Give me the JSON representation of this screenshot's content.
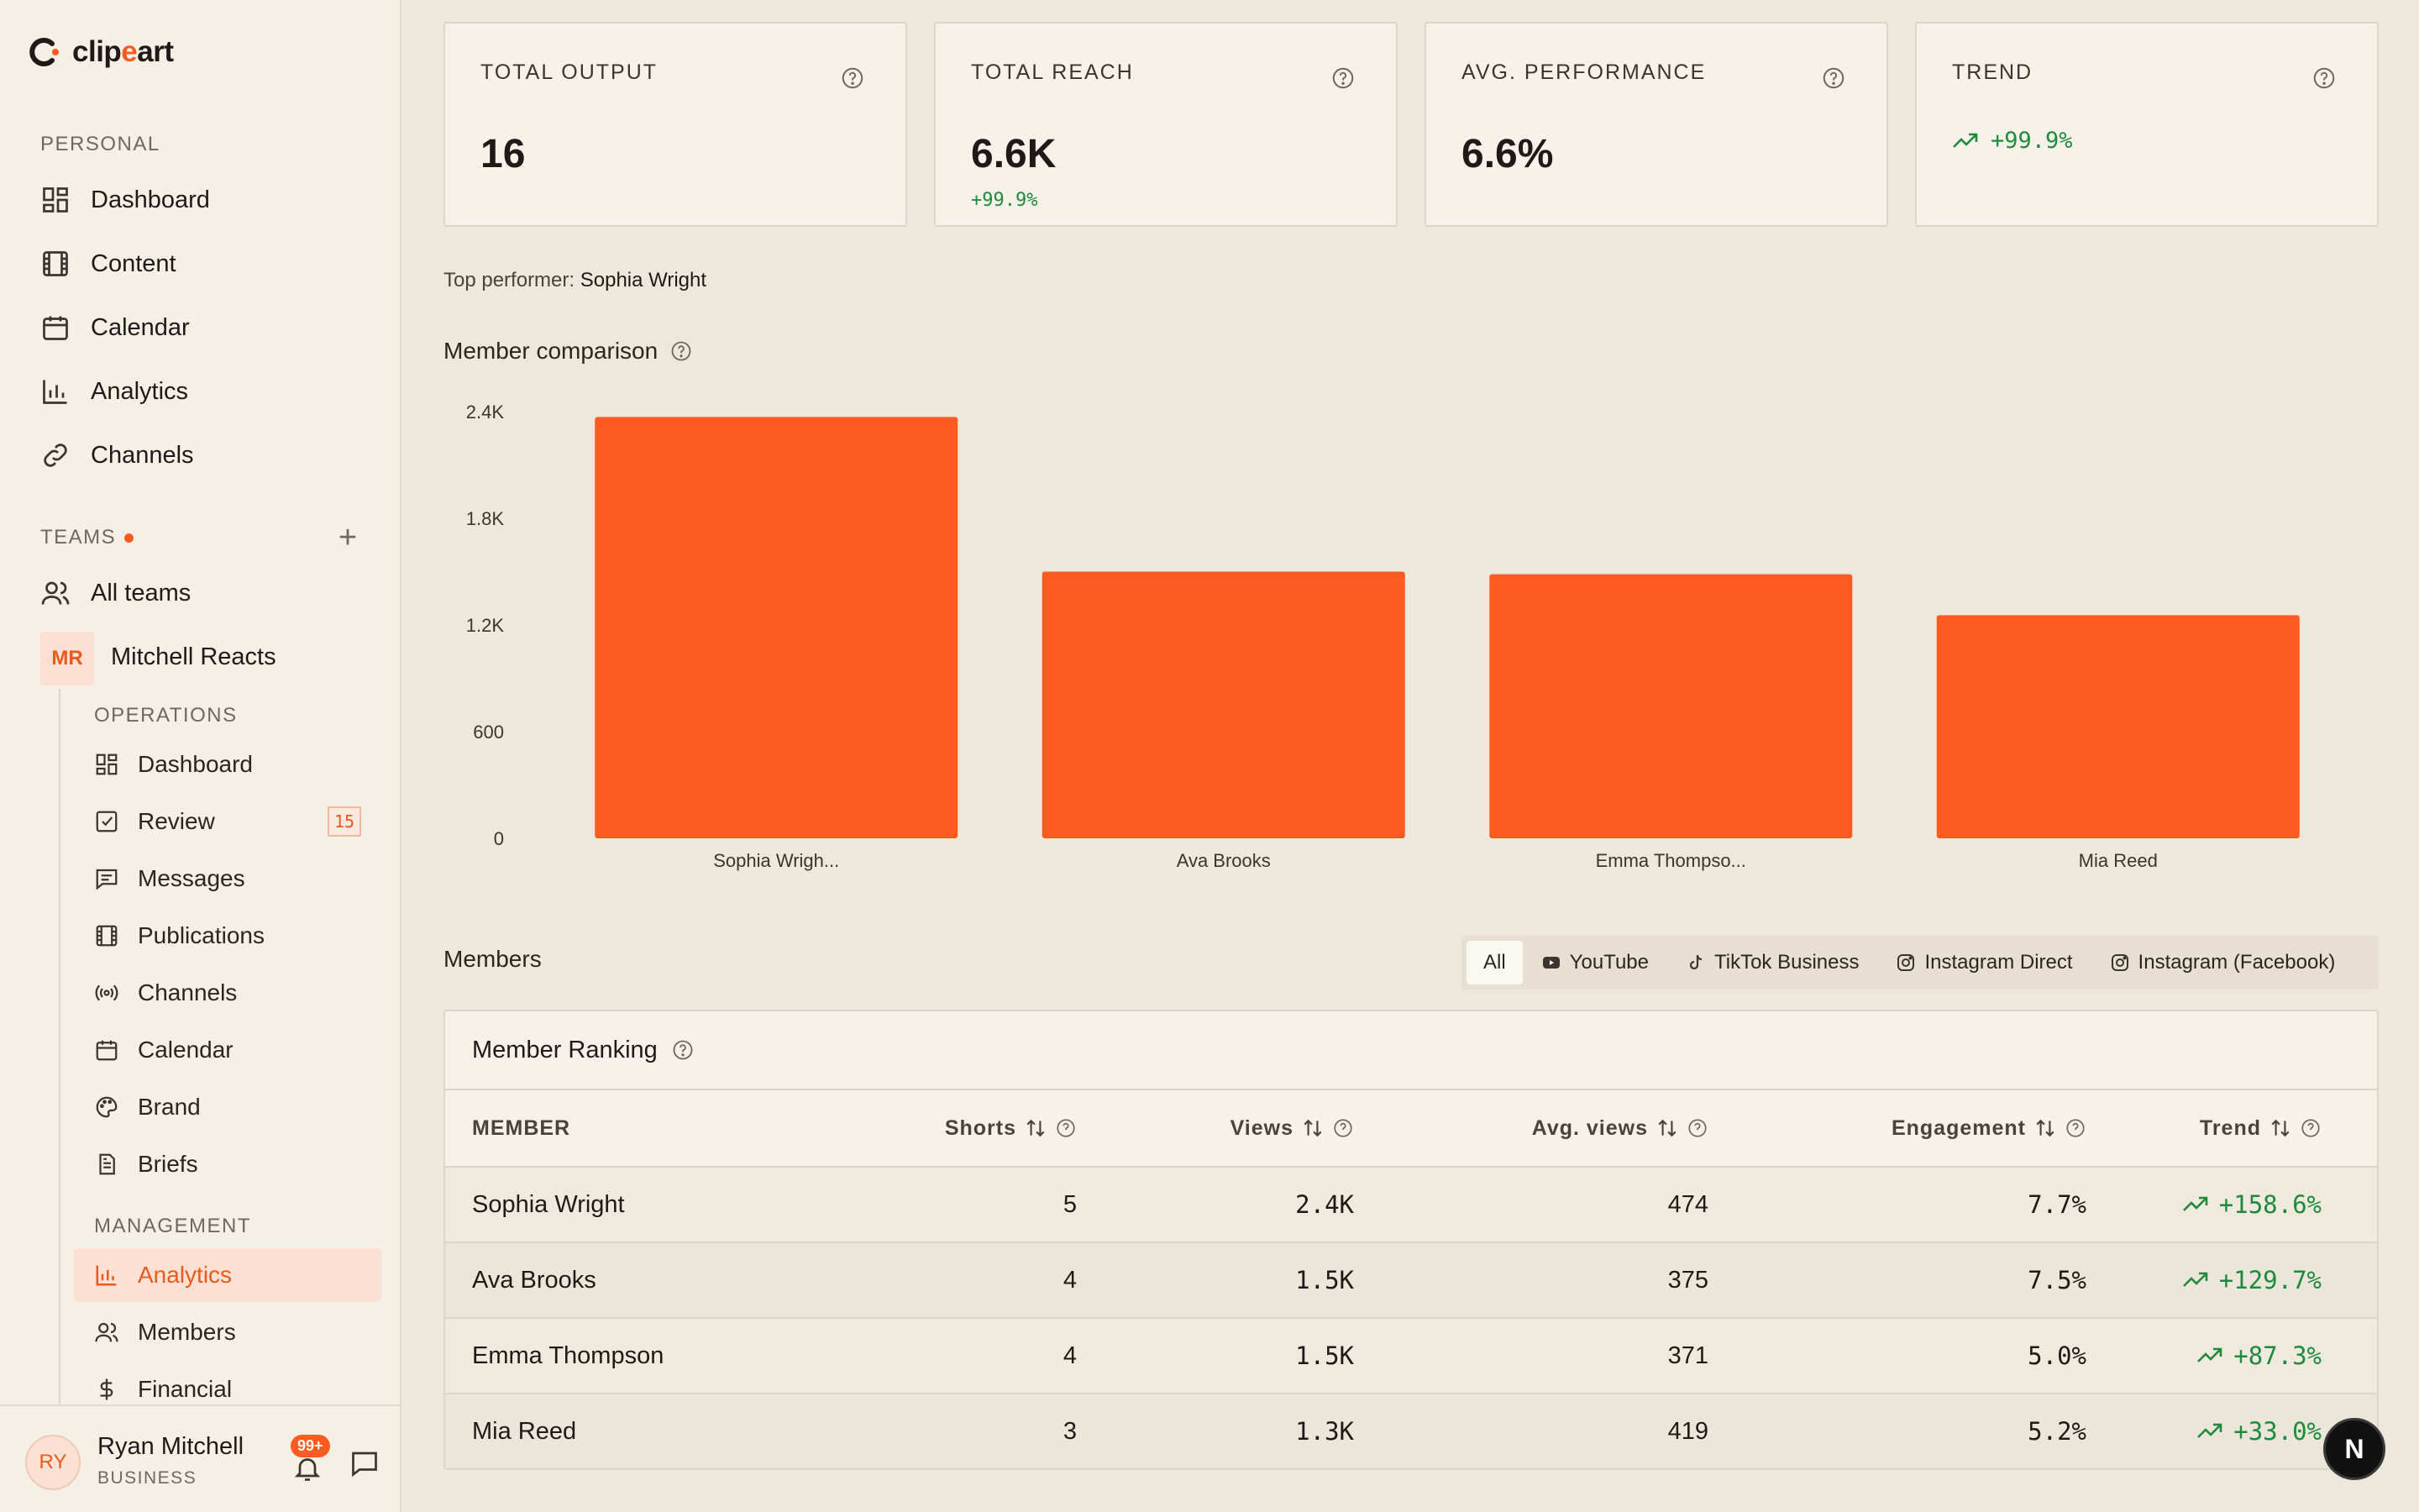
{
  "brand": {
    "logo_text_prefix": "clip",
    "logo_text_accent": "e",
    "logo_text_suffix": "art",
    "accent_color": "#ff5a1f"
  },
  "sidebar": {
    "personal_label": "PERSONAL",
    "personal_items": [
      {
        "label": "Dashboard",
        "icon": "dashboard-icon"
      },
      {
        "label": "Content",
        "icon": "film-icon"
      },
      {
        "label": "Calendar",
        "icon": "calendar-icon"
      },
      {
        "label": "Analytics",
        "icon": "bar-chart-icon"
      },
      {
        "label": "Channels",
        "icon": "link-icon"
      }
    ],
    "teams_label": "TEAMS",
    "all_teams": "All teams",
    "team": {
      "initials": "MR",
      "name": "Mitchell Reacts"
    },
    "operations_label": "OPERATIONS",
    "operations_items": [
      {
        "label": "Dashboard",
        "icon": "dashboard-icon"
      },
      {
        "label": "Review",
        "icon": "checkbox-icon",
        "badge": "15"
      },
      {
        "label": "Messages",
        "icon": "message-icon"
      },
      {
        "label": "Publications",
        "icon": "film-icon"
      },
      {
        "label": "Channels",
        "icon": "broadcast-icon"
      },
      {
        "label": "Calendar",
        "icon": "calendar-icon"
      },
      {
        "label": "Brand",
        "icon": "palette-icon"
      },
      {
        "label": "Briefs",
        "icon": "document-icon"
      }
    ],
    "management_label": "MANAGEMENT",
    "management_items": [
      {
        "label": "Analytics",
        "icon": "bar-chart-icon",
        "active": true
      },
      {
        "label": "Members",
        "icon": "users-icon"
      },
      {
        "label": "Financial",
        "icon": "dollar-icon"
      }
    ],
    "user": {
      "initials": "RY",
      "name": "Ryan Mitchell",
      "plan": "BUSINESS",
      "notifications": "99+"
    }
  },
  "stats": [
    {
      "title": "TOTAL OUTPUT",
      "value": "16",
      "delta": ""
    },
    {
      "title": "TOTAL REACH",
      "value": "6.6K",
      "delta": "+99.9%"
    },
    {
      "title": "AVG. PERFORMANCE",
      "value": "6.6%",
      "delta": ""
    },
    {
      "title": "TREND",
      "value": "",
      "trend": "+99.9%"
    }
  ],
  "top_performer": {
    "label": "Top performer:",
    "name": "Sophia Wright"
  },
  "member_comparison": {
    "title": "Member comparison"
  },
  "chart_data": {
    "type": "bar",
    "categories": [
      "Sophia Wrigh...",
      "Ava Brooks",
      "Emma Thompso...",
      "Mia Reed"
    ],
    "values": [
      2370,
      1500,
      1485,
      1255
    ],
    "yticks": [
      "0",
      "600",
      "1.2K",
      "1.8K",
      "2.4K"
    ],
    "ylim": [
      0,
      2400
    ],
    "color": "#ff5a1f",
    "grid": false
  },
  "members_section": {
    "title": "Members",
    "filters": [
      {
        "label": "All",
        "icon": "",
        "active": true
      },
      {
        "label": "YouTube",
        "icon": "youtube-icon"
      },
      {
        "label": "TikTok Business",
        "icon": "tiktok-icon"
      },
      {
        "label": "Instagram Direct",
        "icon": "instagram-icon"
      },
      {
        "label": "Instagram (Facebook)",
        "icon": "instagram-icon"
      }
    ]
  },
  "ranking": {
    "title": "Member Ranking",
    "columns": [
      "MEMBER",
      "Shorts",
      "Views",
      "Avg. views",
      "Engagement",
      "Trend"
    ],
    "rows": [
      {
        "member": "Sophia Wright",
        "shorts": "5",
        "views": "2.4K",
        "avg": "474",
        "engagement": "7.7%",
        "trend": "+158.6%"
      },
      {
        "member": "Ava Brooks",
        "shorts": "4",
        "views": "1.5K",
        "avg": "375",
        "engagement": "7.5%",
        "trend": "+129.7%"
      },
      {
        "member": "Emma Thompson",
        "shorts": "4",
        "views": "1.5K",
        "avg": "371",
        "engagement": "5.0%",
        "trend": "+87.3%"
      },
      {
        "member": "Mia Reed",
        "shorts": "3",
        "views": "1.3K",
        "avg": "419",
        "engagement": "5.2%",
        "trend": "+33.0%"
      }
    ]
  },
  "fab": {
    "label": "N"
  }
}
